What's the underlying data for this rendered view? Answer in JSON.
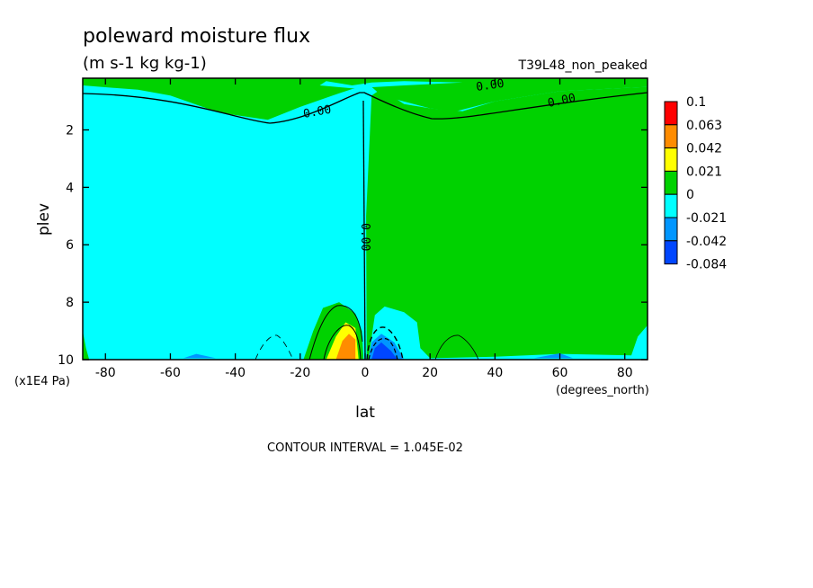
{
  "chart_data": {
    "type": "heatmap",
    "title": "poleward moisture flux",
    "subtitle": "(m s-1 kg kg-1)",
    "run_label": "T39L48_non_peaked",
    "xlabel": "lat",
    "xunits": "(degrees_north)",
    "ylabel": "plev",
    "yunits": "(x1E4 Pa)",
    "xlim": [
      -87,
      87
    ],
    "ylim": [
      10,
      0.2
    ],
    "x_ticks": [
      -80,
      -60,
      -40,
      -20,
      0,
      20,
      40,
      60,
      80
    ],
    "y_ticks": [
      2,
      4,
      6,
      8,
      10
    ],
    "contour_interval_text": "CONTOUR INTERVAL = 1.045E-02",
    "contour_labels": [
      "0.00",
      "0.00",
      "0.00",
      "0.00"
    ],
    "colorbar": {
      "labels": [
        "0.1",
        "0.063",
        "0.042",
        "0.021",
        "0",
        "-0.021",
        "-0.042",
        "-0.084"
      ],
      "colors": [
        "#ff0000",
        "#ff8c00",
        "#ffff00",
        "#00d200",
        "#00ffff",
        "#0096ff",
        "#0046ff"
      ]
    },
    "regions": [
      {
        "name": "positive-upper-band",
        "color": "#00d200",
        "points": [
          [
            -87,
            0.2
          ],
          [
            87,
            0.2
          ],
          [
            87,
            0.5
          ],
          [
            60,
            0.65
          ],
          [
            40,
            1.0
          ],
          [
            28,
            1.35
          ],
          [
            20,
            1.25
          ],
          [
            10,
            0.95
          ],
          [
            4,
            0.7
          ],
          [
            2,
            0.5
          ],
          [
            -2,
            0.5
          ],
          [
            -10,
            0.8
          ],
          [
            -20,
            1.2
          ],
          [
            -30,
            1.65
          ],
          [
            -45,
            1.4
          ],
          [
            -60,
            0.8
          ],
          [
            -70,
            0.6
          ],
          [
            -87,
            0.45
          ]
        ]
      },
      {
        "name": "negative-upper-pocket",
        "color": "#00ffff",
        "points": [
          [
            -12,
            0.3
          ],
          [
            -4,
            0.45
          ],
          [
            2,
            0.35
          ],
          [
            12,
            0.3
          ],
          [
            30,
            0.35
          ],
          [
            12,
            0.45
          ],
          [
            -4,
            0.55
          ],
          [
            -14,
            0.45
          ]
        ]
      },
      {
        "name": "positive-northern-block",
        "color": "#00d200",
        "points": [
          [
            2,
            0.8
          ],
          [
            4,
            0.65
          ],
          [
            8,
            0.8
          ],
          [
            12,
            1.1
          ],
          [
            20,
            1.25
          ],
          [
            30,
            1.35
          ],
          [
            40,
            1.0
          ],
          [
            60,
            0.65
          ],
          [
            87,
            0.5
          ],
          [
            87,
            8.8
          ],
          [
            84,
            9.2
          ],
          [
            82,
            9.85
          ],
          [
            60,
            9.8
          ],
          [
            40,
            9.9
          ],
          [
            20,
            9.95
          ],
          [
            17,
            9.6
          ],
          [
            16,
            8.7
          ],
          [
            12,
            8.35
          ],
          [
            6,
            8.15
          ],
          [
            3,
            8.45
          ],
          [
            1,
            10
          ],
          [
            0.5,
            10
          ],
          [
            0.3,
            5
          ]
        ]
      },
      {
        "name": "positive-sh-surface-blob",
        "color": "#00d200",
        "points": [
          [
            -19,
            10
          ],
          [
            -16,
            9.0
          ],
          [
            -13,
            8.2
          ],
          [
            -8,
            8.0
          ],
          [
            -3,
            8.4
          ],
          [
            -1,
            9.0
          ],
          [
            -0.5,
            10
          ]
        ]
      },
      {
        "name": "yellow-core",
        "color": "#ffff00",
        "points": [
          [
            -12,
            10
          ],
          [
            -9,
            9.2
          ],
          [
            -6,
            8.7
          ],
          [
            -3,
            8.9
          ],
          [
            -2,
            10
          ]
        ]
      },
      {
        "name": "orange-core",
        "color": "#ff8c00",
        "points": [
          [
            -9,
            10
          ],
          [
            -7,
            9.35
          ],
          [
            -5,
            9.1
          ],
          [
            -3,
            9.3
          ],
          [
            -3,
            10
          ]
        ]
      },
      {
        "name": "negative-nh-surface-1",
        "color": "#0096ff",
        "points": [
          [
            1,
            10
          ],
          [
            2,
            9.4
          ],
          [
            5,
            9.1
          ],
          [
            9,
            9.4
          ],
          [
            12,
            10
          ]
        ]
      },
      {
        "name": "negative-nh-surface-2",
        "color": "#0046ff",
        "points": [
          [
            2,
            10
          ],
          [
            3,
            9.6
          ],
          [
            5,
            9.4
          ],
          [
            8,
            9.7
          ],
          [
            10,
            10
          ]
        ]
      },
      {
        "name": "positive-sh-edge",
        "color": "#00d200",
        "points": [
          [
            -87,
            9.0
          ],
          [
            -86,
            9.6
          ],
          [
            -85,
            10
          ],
          [
            -87,
            10
          ]
        ]
      },
      {
        "name": "negative-sh-bottom-sliver",
        "color": "#0096ff",
        "points": [
          [
            -56,
            9.95
          ],
          [
            -52,
            9.8
          ],
          [
            -46,
            9.95
          ]
        ]
      },
      {
        "name": "negative-nh-bottom-sliver",
        "color": "#0096ff",
        "points": [
          [
            52,
            9.95
          ],
          [
            60,
            9.78
          ],
          [
            64,
            9.95
          ]
        ]
      }
    ]
  }
}
